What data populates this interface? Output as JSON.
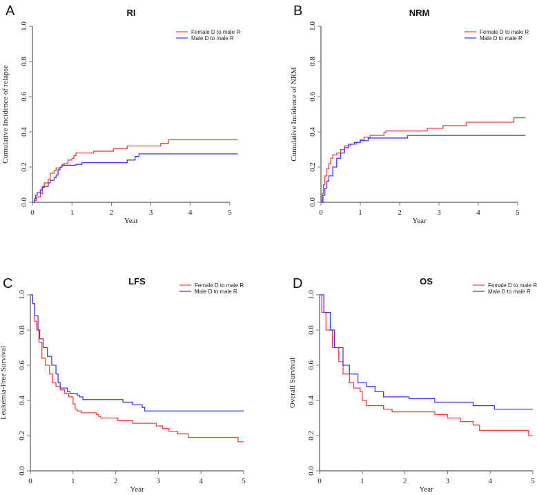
{
  "chart_data": [
    {
      "type": "line",
      "panel_label": "A",
      "title": "RI",
      "xlabel": "Year",
      "ylabel": "Cumulative Incidence of relapse",
      "xlim": [
        0,
        5.2
      ],
      "ylim": [
        0,
        1
      ],
      "xticks": [
        "0",
        "1",
        "2",
        "3",
        "4",
        "5"
      ],
      "yticks": [
        "0.0",
        "0.2",
        "0.4",
        "0.6",
        "0.8",
        "1.0"
      ],
      "legend_position": "top-right",
      "series": [
        {
          "name": "Female D to male R",
          "color": "#ff3b3b",
          "points": [
            [
              0,
              0
            ],
            [
              0.05,
              0.01
            ],
            [
              0.1,
              0.03
            ],
            [
              0.2,
              0.05
            ],
            [
              0.25,
              0.09
            ],
            [
              0.3,
              0.11
            ],
            [
              0.4,
              0.13
            ],
            [
              0.45,
              0.165
            ],
            [
              0.55,
              0.18
            ],
            [
              0.6,
              0.195
            ],
            [
              0.7,
              0.2
            ],
            [
              0.75,
              0.215
            ],
            [
              0.8,
              0.22
            ],
            [
              0.9,
              0.24
            ],
            [
              1.0,
              0.25
            ],
            [
              1.05,
              0.265
            ],
            [
              1.1,
              0.28
            ],
            [
              1.55,
              0.29
            ],
            [
              2.05,
              0.305
            ],
            [
              2.4,
              0.32
            ],
            [
              3.25,
              0.335
            ],
            [
              3.45,
              0.355
            ],
            [
              5.2,
              0.355
            ]
          ]
        },
        {
          "name": "Male D to male R",
          "color": "#3b3bff",
          "points": [
            [
              0,
              0
            ],
            [
              0.05,
              0.02
            ],
            [
              0.08,
              0.04
            ],
            [
              0.12,
              0.055
            ],
            [
              0.2,
              0.07
            ],
            [
              0.25,
              0.085
            ],
            [
              0.3,
              0.09
            ],
            [
              0.4,
              0.11
            ],
            [
              0.45,
              0.125
            ],
            [
              0.55,
              0.14
            ],
            [
              0.6,
              0.155
            ],
            [
              0.65,
              0.185
            ],
            [
              0.7,
              0.2
            ],
            [
              0.75,
              0.21
            ],
            [
              1.1,
              0.215
            ],
            [
              1.25,
              0.225
            ],
            [
              2.4,
              0.24
            ],
            [
              2.6,
              0.26
            ],
            [
              2.7,
              0.275
            ],
            [
              5.2,
              0.275
            ]
          ]
        }
      ]
    },
    {
      "type": "line",
      "panel_label": "B",
      "title": "NRM",
      "xlabel": "Year",
      "ylabel": "Cumulative Incidence of NRM",
      "xlim": [
        0,
        5.2
      ],
      "ylim": [
        0,
        1
      ],
      "xticks": [
        "0",
        "1",
        "2",
        "3",
        "4",
        "5"
      ],
      "yticks": [
        "0.0",
        "0.2",
        "0.4",
        "0.6",
        "0.8",
        "1.0"
      ],
      "legend_position": "top-right",
      "series": [
        {
          "name": "Female D to male R",
          "color": "#ff3b3b",
          "points": [
            [
              0,
              0
            ],
            [
              0.03,
              0.05
            ],
            [
              0.06,
              0.1
            ],
            [
              0.1,
              0.15
            ],
            [
              0.15,
              0.19
            ],
            [
              0.2,
              0.22
            ],
            [
              0.25,
              0.25
            ],
            [
              0.3,
              0.27
            ],
            [
              0.4,
              0.28
            ],
            [
              0.5,
              0.3
            ],
            [
              0.6,
              0.32
            ],
            [
              0.75,
              0.33
            ],
            [
              0.9,
              0.34
            ],
            [
              1.0,
              0.355
            ],
            [
              1.1,
              0.37
            ],
            [
              1.25,
              0.38
            ],
            [
              1.6,
              0.395
            ],
            [
              1.65,
              0.405
            ],
            [
              2.7,
              0.42
            ],
            [
              3.1,
              0.435
            ],
            [
              3.7,
              0.455
            ],
            [
              4.9,
              0.48
            ],
            [
              5.2,
              0.48
            ]
          ]
        },
        {
          "name": "Male D to male R",
          "color": "#3b3bff",
          "points": [
            [
              0,
              0
            ],
            [
              0.05,
              0.04
            ],
            [
              0.1,
              0.08
            ],
            [
              0.15,
              0.12
            ],
            [
              0.2,
              0.15
            ],
            [
              0.3,
              0.2
            ],
            [
              0.4,
              0.25
            ],
            [
              0.5,
              0.28
            ],
            [
              0.6,
              0.31
            ],
            [
              0.7,
              0.33
            ],
            [
              0.85,
              0.34
            ],
            [
              1.0,
              0.35
            ],
            [
              1.2,
              0.365
            ],
            [
              2.2,
              0.38
            ],
            [
              5.2,
              0.38
            ]
          ]
        }
      ]
    },
    {
      "type": "line",
      "panel_label": "C",
      "title": "LFS",
      "xlabel": "Year",
      "ylabel": "Leukemia-Free Survival",
      "xlim": [
        0,
        5
      ],
      "ylim": [
        0,
        1
      ],
      "xticks": [
        "0",
        "1",
        "2",
        "3",
        "4",
        "5"
      ],
      "yticks": [
        "0.0",
        "0.2",
        "0.4",
        "0.6",
        "0.8",
        "1.0"
      ],
      "legend_position": "top-right",
      "series": [
        {
          "name": "Female D to male R",
          "color": "#ff3b3b",
          "points": [
            [
              0,
              1
            ],
            [
              0.05,
              0.95
            ],
            [
              0.1,
              0.85
            ],
            [
              0.15,
              0.8
            ],
            [
              0.2,
              0.73
            ],
            [
              0.27,
              0.64
            ],
            [
              0.35,
              0.6
            ],
            [
              0.45,
              0.55
            ],
            [
              0.52,
              0.5
            ],
            [
              0.6,
              0.48
            ],
            [
              0.7,
              0.46
            ],
            [
              0.8,
              0.44
            ],
            [
              0.9,
              0.42
            ],
            [
              1.0,
              0.38
            ],
            [
              1.05,
              0.35
            ],
            [
              1.1,
              0.34
            ],
            [
              1.2,
              0.33
            ],
            [
              1.55,
              0.32
            ],
            [
              1.6,
              0.31
            ],
            [
              1.65,
              0.3
            ],
            [
              2.05,
              0.285
            ],
            [
              2.4,
              0.27
            ],
            [
              2.95,
              0.255
            ],
            [
              3.1,
              0.24
            ],
            [
              3.25,
              0.225
            ],
            [
              3.45,
              0.21
            ],
            [
              3.7,
              0.19
            ],
            [
              4.87,
              0.165
            ],
            [
              5,
              0.165
            ]
          ]
        },
        {
          "name": "Male D to male R",
          "color": "#3b3bff",
          "points": [
            [
              0,
              1
            ],
            [
              0.05,
              0.95
            ],
            [
              0.1,
              0.88
            ],
            [
              0.18,
              0.8
            ],
            [
              0.22,
              0.75
            ],
            [
              0.3,
              0.7
            ],
            [
              0.4,
              0.65
            ],
            [
              0.5,
              0.6
            ],
            [
              0.6,
              0.55
            ],
            [
              0.65,
              0.5
            ],
            [
              0.7,
              0.47
            ],
            [
              0.87,
              0.45
            ],
            [
              0.93,
              0.44
            ],
            [
              1.1,
              0.43
            ],
            [
              1.15,
              0.42
            ],
            [
              1.23,
              0.405
            ],
            [
              2.17,
              0.39
            ],
            [
              2.4,
              0.375
            ],
            [
              2.62,
              0.36
            ],
            [
              2.68,
              0.34
            ],
            [
              5,
              0.34
            ]
          ]
        }
      ]
    },
    {
      "type": "line",
      "panel_label": "D",
      "title": "OS",
      "xlabel": "Year",
      "ylabel": "Overall Survival",
      "xlim": [
        0,
        5
      ],
      "ylim": [
        0,
        1
      ],
      "xticks": [
        "0",
        "1",
        "2",
        "3",
        "4",
        "5"
      ],
      "yticks": [
        "0.0",
        "0.2",
        "0.4",
        "0.6",
        "0.8",
        "1.0"
      ],
      "legend_position": "top-right",
      "series": [
        {
          "name": "Female D to male R",
          "color": "#ff3b3b",
          "points": [
            [
              0,
              1
            ],
            [
              0.05,
              0.9
            ],
            [
              0.15,
              0.8
            ],
            [
              0.3,
              0.7
            ],
            [
              0.45,
              0.62
            ],
            [
              0.55,
              0.55
            ],
            [
              0.7,
              0.5
            ],
            [
              0.8,
              0.47
            ],
            [
              0.95,
              0.45
            ],
            [
              1.0,
              0.4
            ],
            [
              1.1,
              0.37
            ],
            [
              1.5,
              0.35
            ],
            [
              1.7,
              0.335
            ],
            [
              2.7,
              0.32
            ],
            [
              3.0,
              0.3
            ],
            [
              3.3,
              0.28
            ],
            [
              3.6,
              0.26
            ],
            [
              3.75,
              0.23
            ],
            [
              4.9,
              0.2
            ],
            [
              5,
              0.2
            ]
          ]
        },
        {
          "name": "Male D to male R",
          "color": "#3b3bff",
          "points": [
            [
              0,
              1
            ],
            [
              0.1,
              0.9
            ],
            [
              0.25,
              0.8
            ],
            [
              0.35,
              0.7
            ],
            [
              0.55,
              0.6
            ],
            [
              0.7,
              0.55
            ],
            [
              0.9,
              0.5
            ],
            [
              1.1,
              0.48
            ],
            [
              1.3,
              0.45
            ],
            [
              1.5,
              0.42
            ],
            [
              2.1,
              0.41
            ],
            [
              2.7,
              0.39
            ],
            [
              3.6,
              0.37
            ],
            [
              4.1,
              0.35
            ],
            [
              5,
              0.35
            ]
          ]
        }
      ]
    }
  ]
}
